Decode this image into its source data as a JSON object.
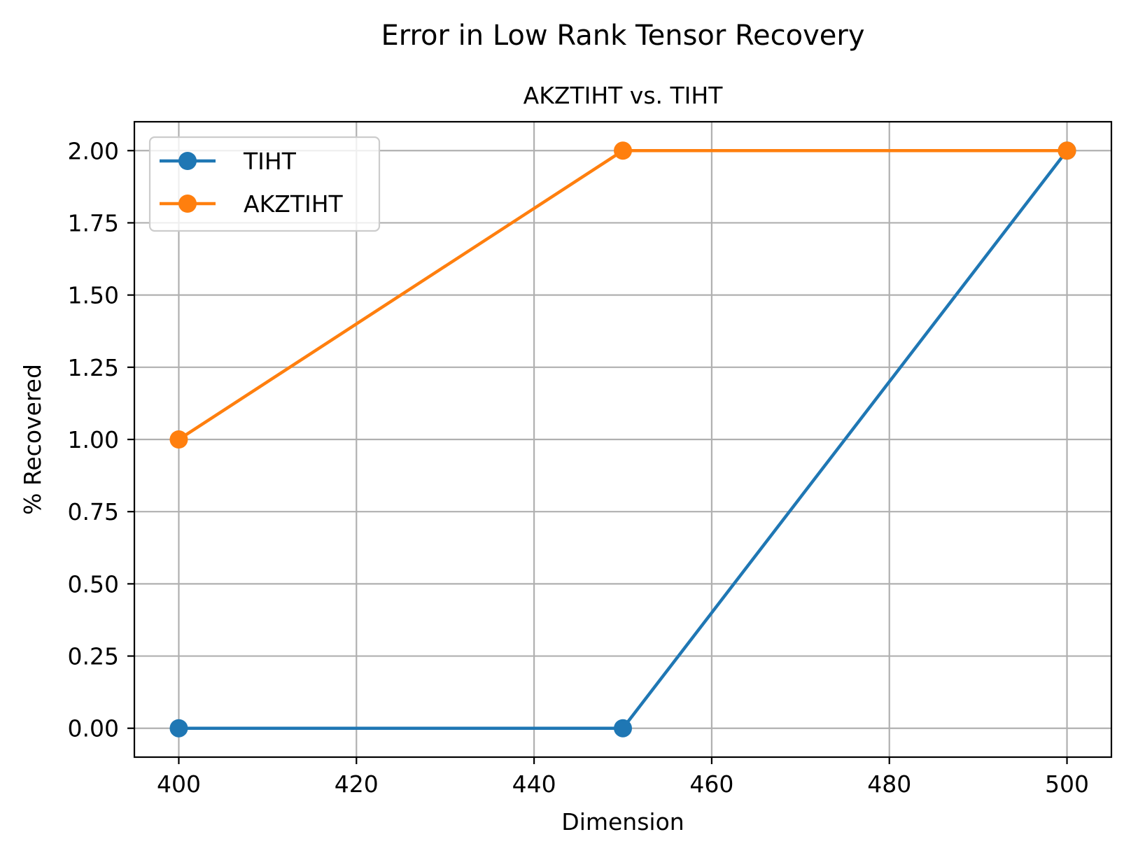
{
  "chart_data": {
    "type": "line",
    "suptitle": "Error in Low Rank Tensor Recovery",
    "title": "AKZTIHT vs. TIHT",
    "xlabel": "Dimension",
    "ylabel": "% Recovered",
    "x": [
      400,
      450,
      500
    ],
    "xlim": [
      395,
      505
    ],
    "ylim": [
      -0.1,
      2.1
    ],
    "xticks": [
      400,
      420,
      440,
      460,
      480,
      500
    ],
    "yticks": [
      0.0,
      0.25,
      0.5,
      0.75,
      1.0,
      1.25,
      1.5,
      1.75,
      2.0
    ],
    "xtick_labels": [
      "400",
      "420",
      "440",
      "460",
      "480",
      "500"
    ],
    "ytick_labels": [
      "0.00",
      "0.25",
      "0.50",
      "0.75",
      "1.00",
      "1.25",
      "1.50",
      "1.75",
      "2.00"
    ],
    "grid": true,
    "legend_position": "top-left",
    "series": [
      {
        "name": "TIHT",
        "values": [
          0,
          0,
          2
        ],
        "color": "#1f77b4",
        "marker": "circle"
      },
      {
        "name": "AKZTIHT",
        "values": [
          1,
          2,
          2
        ],
        "color": "#ff7f0e",
        "marker": "circle"
      }
    ]
  }
}
